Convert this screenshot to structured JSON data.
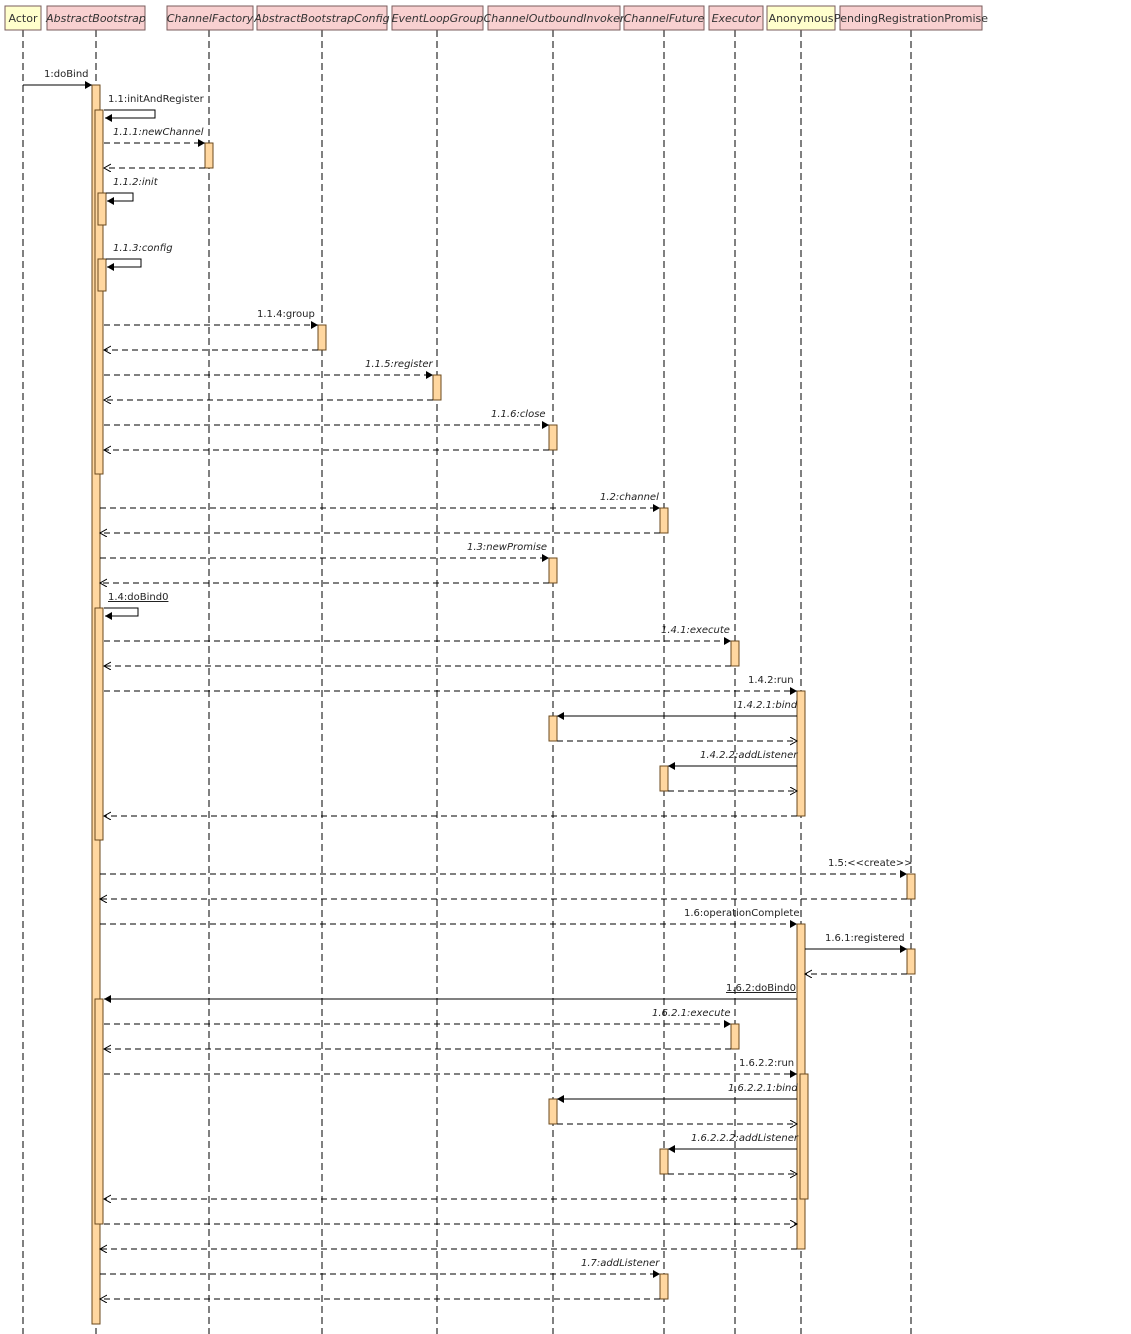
{
  "colors": {
    "actor_header": "#ffffcc",
    "class_header": "#f8d0d0",
    "header_border": "#7a5c5c",
    "activation_fill": "#ffd7a0",
    "activation_border": "#6b4a1e",
    "line": "#000000"
  },
  "lifelines": [
    {
      "id": "actor",
      "label": "Actor",
      "style": "actor",
      "italic": false
    },
    {
      "id": "ab",
      "label": "AbstractBootstrap",
      "style": "class",
      "italic": true
    },
    {
      "id": "cf",
      "label": "ChannelFactory",
      "style": "class",
      "italic": true
    },
    {
      "id": "abc",
      "label": "AbstractBootstrapConfig",
      "style": "class",
      "italic": true
    },
    {
      "id": "elg",
      "label": "EventLoopGroup",
      "style": "class",
      "italic": true
    },
    {
      "id": "coi",
      "label": "ChannelOutboundInvoker",
      "style": "class",
      "italic": true
    },
    {
      "id": "chf",
      "label": "ChannelFuture",
      "style": "class",
      "italic": true
    },
    {
      "id": "exe",
      "label": "Executor",
      "style": "class",
      "italic": true
    },
    {
      "id": "anon",
      "label": "Anonymous",
      "style": "actor",
      "italic": false
    },
    {
      "id": "prp",
      "label": "PendingRegistrationPromise",
      "style": "class",
      "italic": false
    }
  ],
  "messages": [
    {
      "seq": "1:doBind",
      "italic": false,
      "underline": false
    },
    {
      "seq": "1.1:initAndRegister",
      "italic": false,
      "underline": false
    },
    {
      "seq": "1.1.1:newChannel",
      "italic": true,
      "underline": false
    },
    {
      "seq": "1.1.2:init",
      "italic": true,
      "underline": false
    },
    {
      "seq": "1.1.3:config",
      "italic": true,
      "underline": false
    },
    {
      "seq": "1.1.4:group",
      "italic": false,
      "underline": false
    },
    {
      "seq": "1.1.5:register",
      "italic": true,
      "underline": false
    },
    {
      "seq": "1.1.6:close",
      "italic": true,
      "underline": false
    },
    {
      "seq": "1.2:channel",
      "italic": true,
      "underline": false
    },
    {
      "seq": "1.3:newPromise",
      "italic": true,
      "underline": false
    },
    {
      "seq": "1.4:doBind0",
      "italic": false,
      "underline": true
    },
    {
      "seq": "1.4.1:execute",
      "italic": true,
      "underline": false
    },
    {
      "seq": "1.4.2:run",
      "italic": false,
      "underline": false
    },
    {
      "seq": "1.4.2.1:bind",
      "italic": true,
      "underline": false
    },
    {
      "seq": "1.4.2.2:addListener",
      "italic": true,
      "underline": false
    },
    {
      "seq": "1.5:<<create>>",
      "italic": false,
      "underline": false
    },
    {
      "seq": "1.6:operationComplete",
      "italic": false,
      "underline": false
    },
    {
      "seq": "1.6.1:registered",
      "italic": false,
      "underline": false
    },
    {
      "seq": "1.6.2:doBind0",
      "italic": false,
      "underline": true
    },
    {
      "seq": "1.6.2.1:execute",
      "italic": true,
      "underline": false
    },
    {
      "seq": "1.6.2.2:run",
      "italic": false,
      "underline": false
    },
    {
      "seq": "1.6.2.2.1:bind",
      "italic": true,
      "underline": false
    },
    {
      "seq": "1.6.2.2.2:addListener",
      "italic": true,
      "underline": false
    },
    {
      "seq": "1.7:addListener",
      "italic": true,
      "underline": false
    }
  ]
}
